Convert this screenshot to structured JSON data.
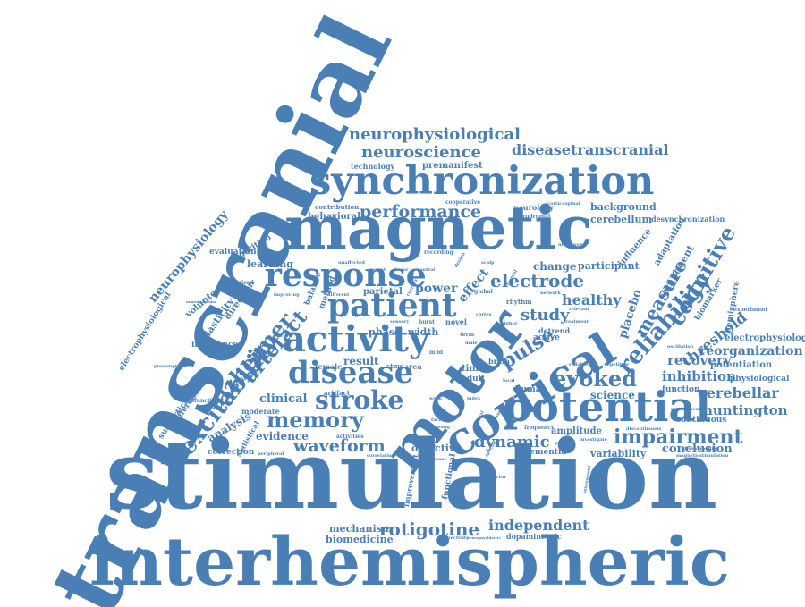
{
  "colors": {
    "word": "#4a7fb5",
    "background": "#ffffff"
  },
  "words": {
    "transcranial": "transcranial",
    "stimulation": "stimulation",
    "interhemispheric": "interhemispheric",
    "magnetic": "magnetic",
    "motor": "motor",
    "synchronization": "synchronization",
    "cortical": "cortical",
    "potential": "potential",
    "activity": "activity",
    "disease": "disease",
    "response": "response",
    "patient": "patient",
    "excitability": "excitability",
    "neurophysiological": "neurophysiological",
    "neuroscience": "neuroscience",
    "diseasetranscranial": "diseasetranscranial",
    "performance": "performance",
    "electrode": "electrode",
    "reliability": "reliability",
    "alzheimer": "alzheimer",
    "artefact": "artefact",
    "stroke": "stroke",
    "memory": "memory",
    "waveform": "waveform",
    "evoked": "evoked",
    "dynamic": "dynamic",
    "impairment": "impairment",
    "rotigotine": "rotigotine",
    "independent": "independent",
    "cognitive": "cognitive",
    "measure": "measure",
    "study": "study",
    "pulse": "pulse",
    "threshold": "threshold",
    "recovery": "recovery",
    "inhibition": "inhibition",
    "cerebellar": "cerebellar",
    "huntington": "huntington",
    "reorganization": "reorganization",
    "electrophysiology": "electrophysiology",
    "potentiation": "potentiation",
    "neurophysiology": "neurophysiology",
    "electrophysiological": "electrophysiological",
    "healthy": "healthy",
    "change": "change",
    "participant": "participant",
    "background": "background",
    "cerebellum": "cerebellum",
    "premanifest": "premanifest",
    "technology": "technology",
    "behavioral": "behavioral",
    "desynchronization": "desynchronization",
    "evidence": "evidence",
    "clinical": "clinical",
    "result": "result",
    "phase": "phase",
    "width": "width",
    "power": "power",
    "effect": "effect",
    "parietal": "parietal",
    "conclusion": "conclusion",
    "variability": "variability",
    "science": "science",
    "function": "function",
    "continuous": "continuous",
    "physiological": "physiological",
    "mechanism": "mechanism",
    "biomedicine": "biomedicine",
    "dopaminergic": "dopaminergic",
    "correction": "correction",
    "statistical": "statistical",
    "analysis": "analysis",
    "subcortical": "subcortical",
    "difference": "difference",
    "imbalance": "imbalance",
    "plasticity": "plasticity",
    "direction": "direction",
    "volunteer": "volunteer",
    "learning": "learning",
    "evaluation": "evaluation",
    "algorithm": "algorithm",
    "influence": "influence",
    "adaptation": "adaptation",
    "component": "component",
    "placebo": "placebo",
    "biomarker": "biomarker",
    "hemisphere": "hemisphere",
    "objective": "objective",
    "amplitude": "amplitude",
    "active": "active",
    "dementia": "dementia",
    "functional": "functional",
    "improvement": "improvement",
    "neurology": "neurology",
    "cooperative": "cooperative",
    "contribution": "contribution",
    "balance": "balance",
    "method": "method",
    "area": "area",
    "time": "time",
    "adult": "adult",
    "human": "human",
    "brain": "brain",
    "female": "female",
    "moderate": "moderate",
    "significant": "significant",
    "rhythm": "rhythm",
    "novel": "novel",
    "detrend": "detrend",
    "frequency": "frequency",
    "recording": "recording",
    "prodromal": "prodromal",
    "experiment": "experiment",
    "recruitment": "recruitment",
    "dysfunction": "dysfunction",
    "randomized": "randomized",
    "artifact": "artifact",
    "global": "global",
    "network": "network",
    "ctms": "ctms",
    "term": "term",
    "peripheral": "peripheral",
    "activities": "activities",
    "correlation": "correlation",
    "increase": "increase",
    "connectivity": "connectivity",
    "neuropsychiatric": "neuropsychiatric",
    "predictor": "predictor",
    "assessment": "assessment",
    "repetitive": "repetitive",
    "reliable": "reliable",
    "oscillation": "oscillation",
    "disentangling": "disentangling",
    "magneticstimulation": "magneticstimulation",
    "discontinuous": "discontinuous",
    "investigate": "investigate",
    "presymptomatic": "presymptomatic",
    "neuromuscular": "neuromuscular",
    "treatment": "treatment",
    "underwent": "underwent",
    "corticospinal": "corticospinal",
    "unaffected": "unaffected",
    "improving": "improving",
    "sensory": "sensory",
    "burst": "burst",
    "mild": "mild",
    "week": "week",
    "signal": "signal",
    "factor": "factor",
    "young": "young",
    "specific": "specific",
    "group": "group",
    "higher": "higher",
    "local": "local",
    "index": "index",
    "design": "design",
    "current": "current",
    "control": "control",
    "frontal": "frontal",
    "different": "different",
    "male": "male",
    "cortex": "cortex",
    "predict": "predict",
    "relevant": "relevant",
    "linear": "linear",
    "scalp": "scalp",
    "target": "target"
  }
}
